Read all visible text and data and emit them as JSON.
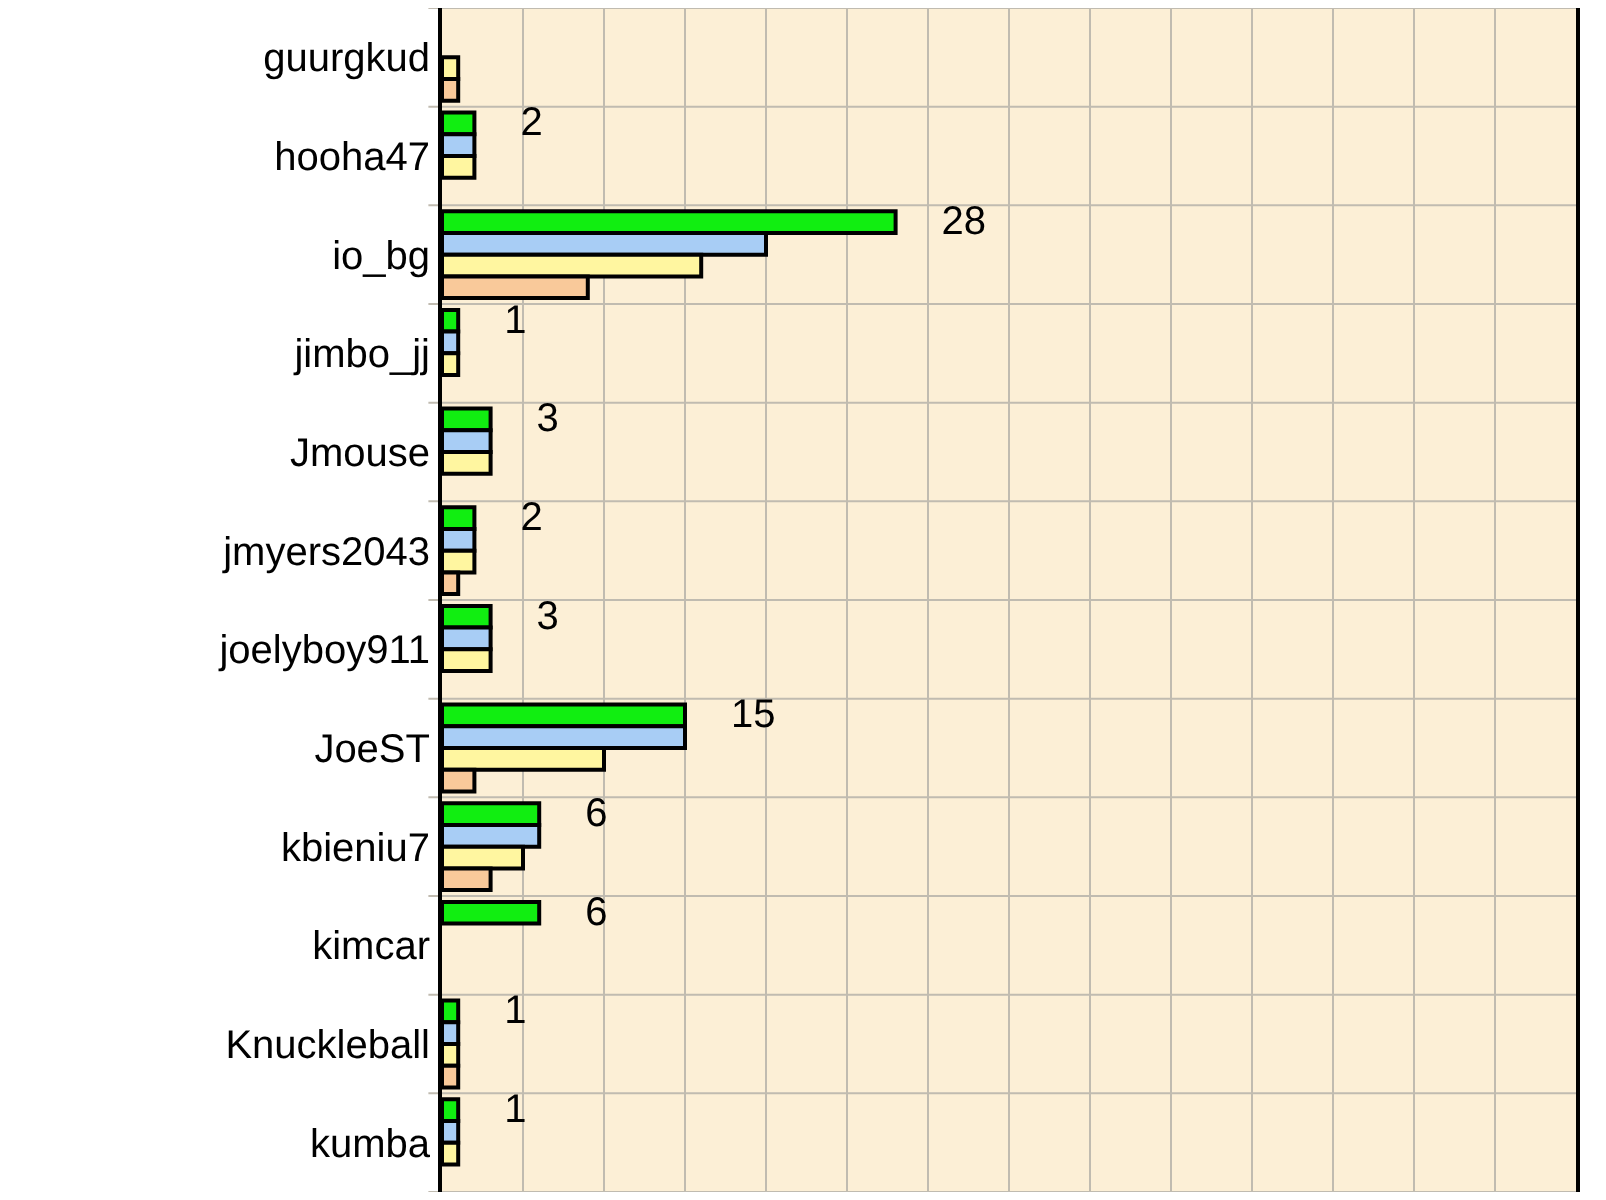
{
  "chart_data": {
    "type": "bar",
    "orientation": "horizontal",
    "categories": [
      "guurgkud",
      "hooha47",
      "io_bg",
      "jimbo_jj",
      "Jmouse",
      "jmyers2043",
      "joelyboy911",
      "JoeST",
      "kbieniu7",
      "kimcar",
      "Knuckleball",
      "kumba"
    ],
    "series": [
      {
        "color": "#11ee11",
        "values": [
          null,
          2,
          28,
          1,
          3,
          2,
          3,
          15,
          6,
          6,
          1,
          1
        ],
        "value_labels": [
          null,
          "2",
          "28",
          "1",
          "3",
          "2",
          "3",
          "15",
          "6",
          "6",
          "1",
          "1"
        ]
      },
      {
        "color": "#a8cdf5",
        "values": [
          null,
          2,
          20,
          1,
          3,
          2,
          3,
          15,
          6,
          null,
          1,
          1
        ]
      },
      {
        "color": "#fff6a0",
        "values": [
          1,
          2,
          16,
          1,
          3,
          2,
          3,
          10,
          5,
          null,
          1,
          1
        ]
      },
      {
        "color": "#f9c99a",
        "values": [
          1,
          null,
          9,
          null,
          null,
          1,
          null,
          2,
          3,
          null,
          1,
          null
        ]
      }
    ],
    "xlim": [
      0,
      70
    ],
    "xticks": [
      {
        "value": 0,
        "label": null
      },
      {
        "value": 5,
        "label": null
      },
      {
        "value": 10,
        "label": null
      },
      {
        "value": 15,
        "label": null
      },
      {
        "value": 20,
        "label": null
      },
      {
        "value": 25,
        "label": null
      },
      {
        "value": 30,
        "label": null
      },
      {
        "value": 35,
        "label": null
      },
      {
        "value": 40,
        "label": null
      },
      {
        "value": 45,
        "label": null
      },
      {
        "value": 50,
        "label": null
      },
      {
        "value": 55,
        "label": null
      },
      {
        "value": 60,
        "label": null
      },
      {
        "value": 65,
        "label": null
      },
      {
        "value": 70,
        "label": null
      }
    ],
    "tick_labels": "y",
    "grid": true
  }
}
